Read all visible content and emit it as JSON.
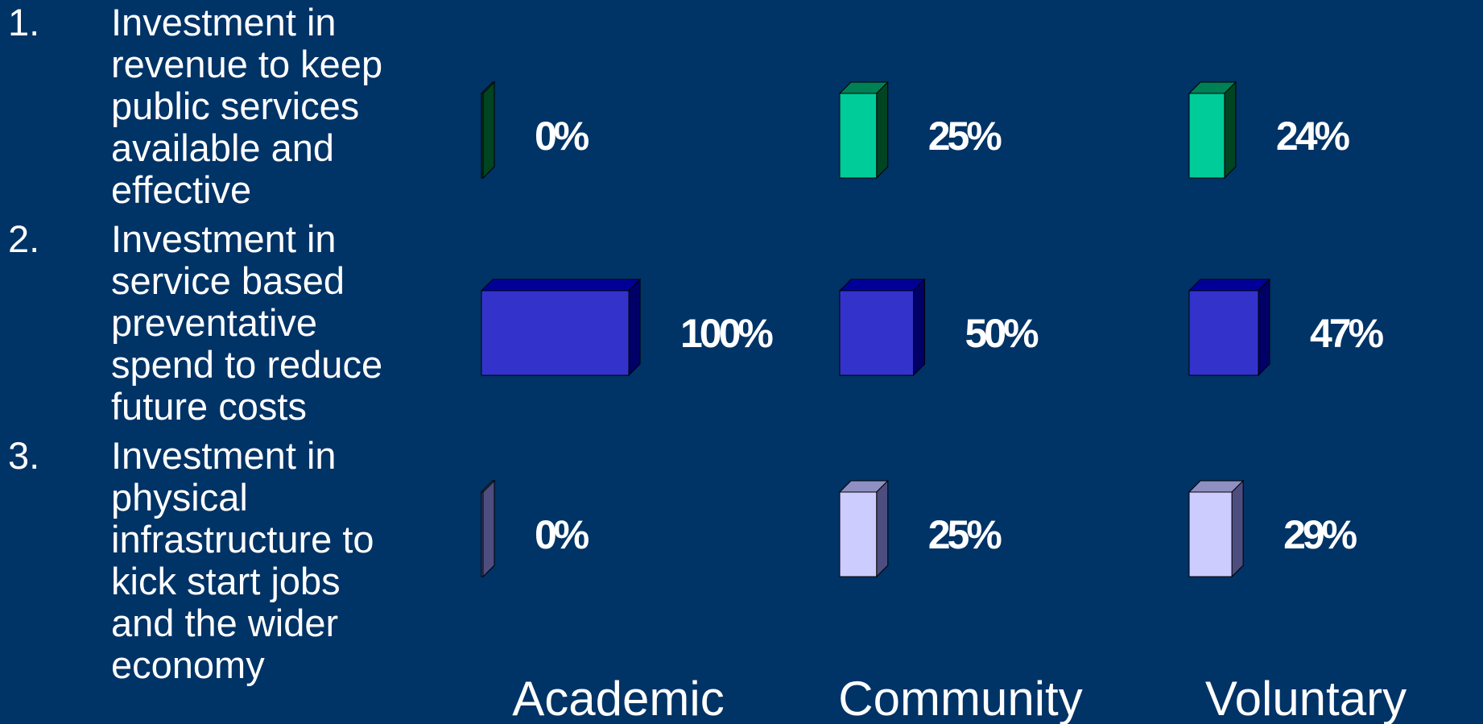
{
  "options": [
    {
      "number": "1.",
      "lines": [
        "Investment in",
        "revenue to keep",
        "public services",
        "available and",
        "effective"
      ]
    },
    {
      "number": "2.",
      "lines": [
        "Investment in",
        "service based",
        "preventative",
        "spend to reduce",
        "future costs"
      ]
    },
    {
      "number": "3.",
      "lines": [
        "Investment in",
        "physical",
        "infrastructure to",
        "kick start jobs",
        "and the wider",
        "economy"
      ]
    }
  ],
  "chart_data": {
    "type": "bar",
    "orientation": "horizontal",
    "style": "3d",
    "value_unit": "%",
    "groups": [
      "Academic",
      "Community",
      "Voluntary"
    ],
    "series": [
      {
        "values": [
          0,
          25,
          24
        ],
        "labels": [
          "0%",
          "25%",
          "24%"
        ],
        "color": "#00CC99",
        "side_color": "#004422",
        "top_color": "#008055"
      },
      {
        "values": [
          100,
          50,
          47
        ],
        "labels": [
          "100%",
          "50%",
          "47%"
        ],
        "color": "#3333CC",
        "side_color": "#000066",
        "top_color": "#000099"
      },
      {
        "values": [
          0,
          25,
          29
        ],
        "labels": [
          "0%",
          "25%",
          "29%"
        ],
        "color": "#CCCCFF",
        "side_color": "#4D4D80",
        "top_color": "#8F8FC2"
      }
    ],
    "xlim": [
      0,
      100
    ],
    "grid": false,
    "legend": "none"
  },
  "colors": {
    "background": "#003366",
    "text": "#FFFFFF"
  }
}
